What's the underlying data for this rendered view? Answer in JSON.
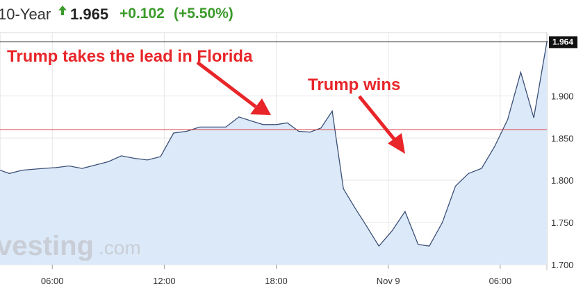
{
  "header": {
    "instrument": "10-Year",
    "direction_icon": "up-arrow-icon",
    "price": "1.965",
    "change": "+0.102",
    "change_pct": "(+5.50%)",
    "up_color": "#3a9a2a"
  },
  "watermark": {
    "brand": "vesting",
    "suffix": ".com"
  },
  "colors": {
    "line": "#3b4f76",
    "fill": "#dce9f8",
    "reference_line": "#d9363e",
    "annotation": "#e8262a"
  },
  "chart_data": {
    "type": "area",
    "title": "",
    "xlabel": "",
    "ylabel": "",
    "ylim": [
      1.7,
      1.975
    ],
    "grid": true,
    "x_tick_labels": [
      "06:00",
      "12:00",
      "18:00",
      "Nov 9",
      "06:00"
    ],
    "x_tick_hours": [
      6,
      12,
      18,
      24,
      30
    ],
    "y_tick_labels": [
      "1.700",
      "1.750",
      "1.800",
      "1.850",
      "1.900"
    ],
    "y_tick_values": [
      1.7,
      1.75,
      1.8,
      1.85,
      1.9
    ],
    "last_value_label": "1.964",
    "last_value": 1.964,
    "reference_value": 1.86,
    "series": [
      {
        "x": [
          3.2,
          3.7,
          4.4,
          5.5,
          6.2,
          6.9,
          7.6,
          8.3,
          9.0,
          9.7,
          10.4,
          11.1,
          11.8,
          12.5,
          13.2,
          13.9,
          14.6,
          15.3,
          16.0,
          16.7,
          17.3,
          18.0,
          18.6,
          19.2,
          19.8,
          20.4,
          21.0,
          21.6,
          22.2,
          22.8,
          23.5,
          24.2,
          24.9,
          25.6,
          26.2,
          26.9,
          27.6,
          28.3,
          29.0,
          29.7,
          30.4,
          31.1,
          31.8,
          32.5
        ],
        "y": [
          1.812,
          1.808,
          1.812,
          1.814,
          1.815,
          1.817,
          1.814,
          1.818,
          1.822,
          1.829,
          1.826,
          1.824,
          1.828,
          1.856,
          1.858,
          1.863,
          1.863,
          1.863,
          1.875,
          1.87,
          1.866,
          1.866,
          1.868,
          1.858,
          1.857,
          1.862,
          1.882,
          1.79,
          1.768,
          1.747,
          1.722,
          1.74,
          1.763,
          1.724,
          1.722,
          1.75,
          1.793,
          1.808,
          1.814,
          1.84,
          1.872,
          1.928,
          1.874,
          1.964
        ]
      }
    ]
  }
}
